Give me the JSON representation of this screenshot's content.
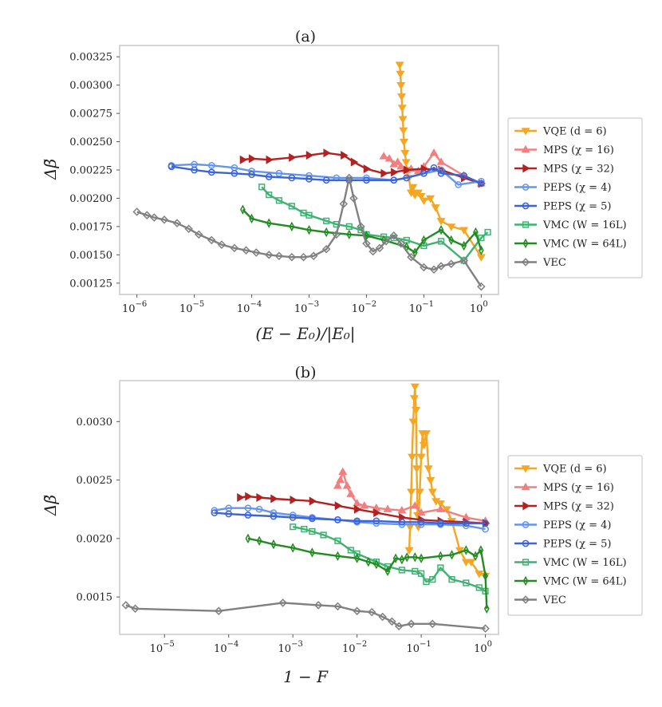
{
  "chart_data": [
    {
      "type": "line",
      "title": "(a)",
      "xlabel": "(E − E₀)/|E₀|",
      "ylabel": "Δβ̃",
      "xscale": "log",
      "xlim": [
        5e-07,
        2
      ],
      "ylim": [
        0.00115,
        0.00335
      ],
      "x_ticks": [
        1e-06,
        1e-05,
        0.0001,
        0.001,
        0.01,
        0.1,
        1
      ],
      "x_tick_labels": [
        {
          "base": "10",
          "exp": "−6"
        },
        {
          "base": "10",
          "exp": "−5"
        },
        {
          "base": "10",
          "exp": "−4"
        },
        {
          "base": "10",
          "exp": "−3"
        },
        {
          "base": "10",
          "exp": "−2"
        },
        {
          "base": "10",
          "exp": "−1"
        },
        {
          "base": "10",
          "exp": "0"
        }
      ],
      "y_ticks": [
        0.00125,
        0.0015,
        0.00175,
        0.002,
        0.00225,
        0.0025,
        0.00275,
        0.003,
        0.00325
      ],
      "y_tick_labels": [
        "0.00125",
        "0.00150",
        "0.00175",
        "0.00200",
        "0.00225",
        "0.00250",
        "0.00275",
        "0.00300",
        "0.00325"
      ],
      "legend_position": "right-outside",
      "series": [
        {
          "name": "VQE (d = 6)",
          "color": "#f5a623",
          "marker": "tri_down",
          "x": [
            0.038,
            0.039,
            0.04,
            0.041,
            0.042,
            0.043,
            0.044,
            0.045,
            0.047,
            0.049,
            0.05,
            0.055,
            0.06,
            0.065,
            0.07,
            0.08,
            0.09,
            0.1,
            0.13,
            0.16,
            0.2,
            0.3,
            0.5,
            1.0
          ],
          "y": [
            0.00318,
            0.0031,
            0.003,
            0.0029,
            0.0028,
            0.0027,
            0.0026,
            0.0025,
            0.0024,
            0.00232,
            0.00225,
            0.00218,
            0.00205,
            0.0021,
            0.00203,
            0.00205,
            0.00202,
            0.00198,
            0.002,
            0.00192,
            0.0018,
            0.00175,
            0.00172,
            0.00148
          ]
        },
        {
          "name": "MPS (χ = 16)",
          "color": "#f08080",
          "marker": "tri_up",
          "x": [
            0.02,
            0.025,
            0.03,
            0.035,
            0.04,
            0.05,
            0.06,
            0.08,
            0.1,
            0.15,
            0.2,
            0.5,
            1.0
          ],
          "y": [
            0.00237,
            0.00235,
            0.0023,
            0.00232,
            0.00228,
            0.00225,
            0.00226,
            0.00224,
            0.00228,
            0.0024,
            0.00232,
            0.0022,
            0.00213
          ]
        },
        {
          "name": "MPS (χ = 32)",
          "color": "#b22222",
          "marker": "tri_right",
          "x": [
            7e-05,
            0.0001,
            0.0002,
            0.0005,
            0.001,
            0.002,
            0.004,
            0.006,
            0.01,
            0.02,
            0.03,
            0.05,
            0.1,
            0.2,
            0.5,
            1.0
          ],
          "y": [
            0.00234,
            0.00235,
            0.00234,
            0.00236,
            0.00238,
            0.0024,
            0.00238,
            0.00232,
            0.00226,
            0.00222,
            0.00223,
            0.00225,
            0.00226,
            0.00225,
            0.00218,
            0.00213
          ]
        },
        {
          "name": "PEPS (χ = 4)",
          "color": "#6495ed",
          "marker": "circle",
          "x": [
            4e-06,
            1e-05,
            2e-05,
            5e-05,
            0.0001,
            0.0003,
            0.001,
            0.003,
            0.01,
            0.03,
            0.05,
            0.1,
            0.2,
            0.4,
            1.0
          ],
          "y": [
            0.00229,
            0.0023,
            0.00229,
            0.00227,
            0.00224,
            0.00222,
            0.0022,
            0.00218,
            0.00218,
            0.00216,
            0.00218,
            0.00222,
            0.00225,
            0.00212,
            0.00215
          ]
        },
        {
          "name": "PEPS (χ = 5)",
          "color": "#3c64d8",
          "marker": "circle",
          "x": [
            4e-06,
            1e-05,
            2e-05,
            5e-05,
            0.0001,
            0.0002,
            0.0005,
            0.001,
            0.002,
            0.005,
            0.01,
            0.03,
            0.05,
            0.1,
            0.15,
            0.2,
            0.5,
            1.0
          ],
          "y": [
            0.00228,
            0.00225,
            0.00223,
            0.00222,
            0.00221,
            0.00219,
            0.00218,
            0.00217,
            0.00216,
            0.00216,
            0.00216,
            0.00216,
            0.00218,
            0.00222,
            0.00227,
            0.00222,
            0.0022,
            0.00213
          ]
        },
        {
          "name": "VMC (W = 16L)",
          "color": "#3cb371",
          "marker": "square",
          "x": [
            0.00015,
            0.0002,
            0.0003,
            0.0005,
            0.0008,
            0.001,
            0.002,
            0.003,
            0.005,
            0.008,
            0.01,
            0.02,
            0.03,
            0.05,
            0.1,
            0.2,
            0.5,
            1.0,
            1.3
          ],
          "y": [
            0.0021,
            0.00203,
            0.00198,
            0.00193,
            0.00187,
            0.00185,
            0.0018,
            0.00177,
            0.00175,
            0.00172,
            0.00168,
            0.00166,
            0.00165,
            0.00163,
            0.00158,
            0.00162,
            0.00145,
            0.00165,
            0.0017
          ]
        },
        {
          "name": "VMC (W = 64L)",
          "color": "#228b22",
          "marker": "thin_diamond",
          "x": [
            7e-05,
            0.0001,
            0.0002,
            0.0005,
            0.001,
            0.002,
            0.005,
            0.01,
            0.02,
            0.05,
            0.07,
            0.1,
            0.2,
            0.3,
            0.5,
            0.8,
            1.0
          ],
          "y": [
            0.0019,
            0.00182,
            0.00178,
            0.00175,
            0.00172,
            0.0017,
            0.00168,
            0.00167,
            0.00163,
            0.00157,
            0.00152,
            0.00163,
            0.00172,
            0.00163,
            0.00158,
            0.0017,
            0.00154
          ]
        },
        {
          "name": "VEC",
          "color": "#808080",
          "marker": "diamond",
          "x": [
            1e-06,
            1.5e-06,
            2e-06,
            3e-06,
            5e-06,
            8e-06,
            1.2e-05,
            2e-05,
            3e-05,
            5e-05,
            8e-05,
            0.00012,
            0.0002,
            0.0003,
            0.0005,
            0.0008,
            0.0012,
            0.002,
            0.003,
            0.004,
            0.005,
            0.006,
            0.008,
            0.01,
            0.013,
            0.017,
            0.022,
            0.03,
            0.04,
            0.06,
            0.1,
            0.15,
            0.2,
            0.3,
            0.5,
            1.0
          ],
          "y": [
            0.00188,
            0.00185,
            0.00183,
            0.00181,
            0.00178,
            0.00173,
            0.00168,
            0.00163,
            0.00159,
            0.00156,
            0.00154,
            0.00152,
            0.0015,
            0.00149,
            0.00148,
            0.00148,
            0.00149,
            0.00155,
            0.00168,
            0.00195,
            0.00218,
            0.002,
            0.00175,
            0.0016,
            0.00153,
            0.00156,
            0.00162,
            0.00167,
            0.0016,
            0.00148,
            0.00139,
            0.00137,
            0.0014,
            0.00142,
            0.00145,
            0.00122
          ]
        }
      ]
    },
    {
      "type": "line",
      "title": "(b)",
      "xlabel": "1 − F",
      "ylabel": "Δβ̃",
      "xscale": "log",
      "xlim": [
        2e-06,
        1.6
      ],
      "ylim": [
        0.00118,
        0.00335
      ],
      "x_ticks": [
        1e-05,
        0.0001,
        0.001,
        0.01,
        0.1,
        1
      ],
      "x_tick_labels": [
        {
          "base": "10",
          "exp": "−5"
        },
        {
          "base": "10",
          "exp": "−4"
        },
        {
          "base": "10",
          "exp": "−3"
        },
        {
          "base": "10",
          "exp": "−2"
        },
        {
          "base": "10",
          "exp": "−1"
        },
        {
          "base": "10",
          "exp": "0"
        }
      ],
      "y_ticks": [
        0.0015,
        0.002,
        0.0025,
        0.003
      ],
      "y_tick_labels": [
        "0.0015",
        "0.0020",
        "0.0025",
        "0.0030"
      ],
      "legend_position": "right-outside",
      "series": [
        {
          "name": "VQE (d = 6)",
          "color": "#f5a623",
          "marker": "tri_down",
          "x": [
            0.065,
            0.067,
            0.07,
            0.072,
            0.075,
            0.078,
            0.08,
            0.083,
            0.085,
            0.088,
            0.09,
            0.095,
            0.1,
            0.105,
            0.11,
            0.12,
            0.13,
            0.14,
            0.15,
            0.17,
            0.2,
            0.25,
            0.3,
            0.4,
            0.5,
            0.6,
            0.8,
            1.0
          ],
          "y": [
            0.0019,
            0.0021,
            0.0024,
            0.0027,
            0.003,
            0.0032,
            0.0033,
            0.0031,
            0.0026,
            0.0022,
            0.0021,
            0.0024,
            0.0027,
            0.0029,
            0.0028,
            0.0029,
            0.0026,
            0.0025,
            0.0024,
            0.00232,
            0.0023,
            0.00225,
            0.00215,
            0.0019,
            0.0018,
            0.0018,
            0.0017,
            0.00168
          ]
        },
        {
          "name": "MPS (χ = 16)",
          "color": "#f08080",
          "marker": "tri_up",
          "x": [
            0.005,
            0.0055,
            0.006,
            0.007,
            0.008,
            0.01,
            0.013,
            0.02,
            0.03,
            0.05,
            0.08,
            0.1,
            0.2,
            0.5,
            1.0
          ],
          "y": [
            0.00245,
            0.0025,
            0.00257,
            0.00245,
            0.00238,
            0.0023,
            0.00228,
            0.00226,
            0.00225,
            0.00224,
            0.00228,
            0.00222,
            0.00225,
            0.00218,
            0.00215
          ]
        },
        {
          "name": "MPS (χ = 32)",
          "color": "#b22222",
          "marker": "tri_right",
          "x": [
            0.00015,
            0.0002,
            0.0003,
            0.0005,
            0.001,
            0.002,
            0.005,
            0.01,
            0.02,
            0.05,
            0.1,
            0.2,
            0.5,
            1.0
          ],
          "y": [
            0.00235,
            0.00236,
            0.00235,
            0.00234,
            0.00233,
            0.00232,
            0.00228,
            0.00225,
            0.00222,
            0.00218,
            0.00216,
            0.00215,
            0.00214,
            0.00213
          ]
        },
        {
          "name": "PEPS (χ = 4)",
          "color": "#6495ed",
          "marker": "circle",
          "x": [
            6e-05,
            0.0001,
            0.0002,
            0.0003,
            0.0005,
            0.001,
            0.002,
            0.005,
            0.01,
            0.02,
            0.05,
            0.1,
            0.2,
            0.5,
            1.0
          ],
          "y": [
            0.00224,
            0.00226,
            0.00226,
            0.00225,
            0.00222,
            0.0022,
            0.00218,
            0.00216,
            0.00214,
            0.00213,
            0.00212,
            0.00212,
            0.00212,
            0.00211,
            0.00208
          ]
        },
        {
          "name": "PEPS (χ = 5)",
          "color": "#3c64d8",
          "marker": "circle",
          "x": [
            6e-05,
            0.0001,
            0.0002,
            0.0005,
            0.001,
            0.002,
            0.005,
            0.01,
            0.02,
            0.05,
            0.1,
            0.2,
            0.5,
            1.0
          ],
          "y": [
            0.00222,
            0.00221,
            0.0022,
            0.00219,
            0.00218,
            0.00217,
            0.00216,
            0.00215,
            0.00215,
            0.00214,
            0.00214,
            0.00213,
            0.00213,
            0.00213
          ]
        },
        {
          "name": "VMC (W = 16L)",
          "color": "#3cb371",
          "marker": "square",
          "x": [
            0.001,
            0.0015,
            0.002,
            0.003,
            0.005,
            0.008,
            0.01,
            0.02,
            0.03,
            0.05,
            0.08,
            0.1,
            0.12,
            0.15,
            0.2,
            0.3,
            0.5,
            0.8,
            1.0
          ],
          "y": [
            0.0021,
            0.00208,
            0.00206,
            0.00203,
            0.00198,
            0.0019,
            0.00187,
            0.0018,
            0.00176,
            0.00173,
            0.00172,
            0.0017,
            0.00163,
            0.00165,
            0.00175,
            0.00165,
            0.00162,
            0.00158,
            0.00155
          ]
        },
        {
          "name": "VMC (W = 64L)",
          "color": "#228b22",
          "marker": "thin_diamond",
          "x": [
            0.0002,
            0.0003,
            0.0005,
            0.001,
            0.002,
            0.005,
            0.01,
            0.015,
            0.02,
            0.03,
            0.04,
            0.05,
            0.06,
            0.08,
            0.1,
            0.2,
            0.3,
            0.5,
            0.7,
            0.85,
            1.0,
            1.05
          ],
          "y": [
            0.002,
            0.00198,
            0.00195,
            0.00192,
            0.00188,
            0.00185,
            0.00183,
            0.0018,
            0.00178,
            0.00172,
            0.00183,
            0.00182,
            0.00184,
            0.00184,
            0.00183,
            0.00185,
            0.00186,
            0.0019,
            0.00185,
            0.0019,
            0.00168,
            0.0014
          ]
        },
        {
          "name": "VEC",
          "color": "#808080",
          "marker": "diamond",
          "x": [
            2.5e-06,
            3.5e-06,
            7e-05,
            0.0007,
            0.0025,
            0.005,
            0.01,
            0.017,
            0.025,
            0.035,
            0.045,
            0.07,
            0.15,
            1.0
          ],
          "y": [
            0.00143,
            0.0014,
            0.00138,
            0.00145,
            0.00143,
            0.00142,
            0.00138,
            0.00137,
            0.00133,
            0.00129,
            0.00125,
            0.00127,
            0.00127,
            0.00123
          ]
        }
      ]
    }
  ]
}
